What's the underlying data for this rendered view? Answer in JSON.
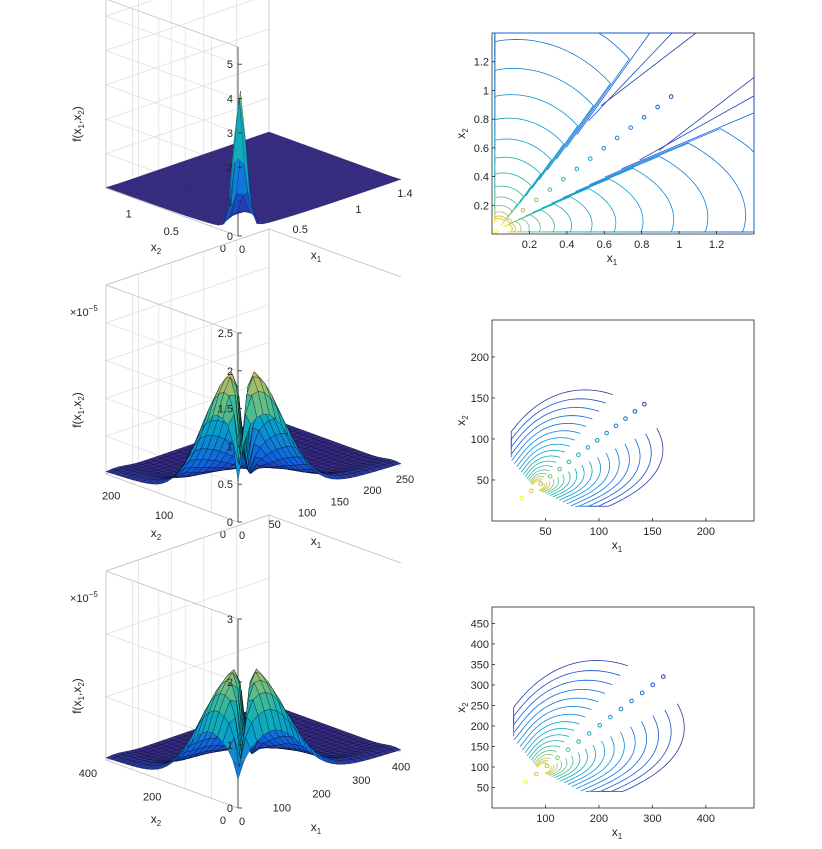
{
  "figure": {
    "panels_3d": [
      {
        "zlabel": "f(x",
        "zticks": [
          "0",
          "1",
          "2",
          "3",
          "4",
          "5"
        ],
        "exponent": "",
        "x1ticks": [
          "0",
          "0.5",
          "1",
          "1.4"
        ],
        "x2ticks": [
          "0",
          "0.5",
          "1"
        ],
        "x1label": "x",
        "x2label": "x"
      },
      {
        "zlabel": "f(x",
        "zticks": [
          "0",
          "0.5",
          "1",
          "1.5",
          "2",
          "2.5"
        ],
        "exponent": "×10",
        "exponent_power": "−5",
        "x1ticks": [
          "0",
          "50",
          "100",
          "150",
          "200",
          "250"
        ],
        "x2ticks": [
          "0",
          "100",
          "200"
        ],
        "x1label": "x",
        "x2label": "x"
      },
      {
        "zlabel": "f(x",
        "zticks": [
          "0",
          "1",
          "2",
          "3"
        ],
        "exponent": "×10",
        "exponent_power": "−5",
        "x1ticks": [
          "0",
          "100",
          "200",
          "300",
          "400"
        ],
        "x2ticks": [
          "0",
          "200",
          "400"
        ],
        "x1label": "x",
        "x2label": "x"
      }
    ],
    "panels_contour": [
      {
        "xticks": [
          "0.2",
          "0.4",
          "0.6",
          "0.8",
          "1",
          "1.2"
        ],
        "yticks": [
          "0.2",
          "0.4",
          "0.6",
          "0.8",
          "1",
          "1.2"
        ],
        "xlabel": "x",
        "ylabel": "x"
      },
      {
        "xticks": [
          "50",
          "100",
          "150",
          "200"
        ],
        "yticks": [
          "50",
          "100",
          "150",
          "200"
        ],
        "xlabel": "x",
        "ylabel": "x"
      },
      {
        "xticks": [
          "100",
          "200",
          "300",
          "400"
        ],
        "yticks": [
          "50",
          "100",
          "150",
          "200",
          "250",
          "300",
          "350",
          "400",
          "450"
        ],
        "xlabel": "x",
        "ylabel": "x"
      }
    ]
  },
  "chart_data": [
    {
      "type": "surface",
      "title": "",
      "zlabel": "f(x1,x2)",
      "xlabel": "x1",
      "ylabel": "x2",
      "xlim": [
        0,
        1.4
      ],
      "ylim": [
        0,
        1.4
      ],
      "zlim": [
        0,
        5.5
      ],
      "peak_value": 4.8,
      "peak_note": "two ridges meeting at a sharp peak near the origin along the diagonal x1 = x2"
    },
    {
      "type": "contour",
      "title": "",
      "xlabel": "x1",
      "ylabel": "x2",
      "xlim": [
        0,
        1.4
      ],
      "ylim": [
        0,
        1.4
      ],
      "levels": 18,
      "mode_x": [
        0.03,
        0.03
      ],
      "mode_y": [
        0.03,
        0.03
      ]
    },
    {
      "type": "surface",
      "title": "",
      "zlabel": "f(x1,x2)",
      "xlabel": "x1",
      "ylabel": "x2",
      "xlim": [
        0,
        250
      ],
      "ylim": [
        0,
        250
      ],
      "zlim": [
        0,
        2.5e-05
      ],
      "zscale": 1e-05,
      "peak_value": 2.05e-05,
      "mode": [
        40,
        40
      ]
    },
    {
      "type": "contour",
      "title": "",
      "xlabel": "x1",
      "ylabel": "x2",
      "xlim": [
        0,
        245
      ],
      "ylim": [
        0,
        245
      ],
      "levels": 18,
      "mode": [
        40,
        40
      ]
    },
    {
      "type": "surface",
      "title": "",
      "zlabel": "f(x1,x2)",
      "xlabel": "x1",
      "ylabel": "x2",
      "xlim": [
        0,
        410
      ],
      "ylim": [
        0,
        410
      ],
      "zlim": [
        0,
        3e-05
      ],
      "zscale": 1e-05,
      "peak_value": 2.3e-05,
      "mode": [
        90,
        90
      ]
    },
    {
      "type": "contour",
      "title": "",
      "xlabel": "x1",
      "ylabel": "x2",
      "xlim": [
        0,
        490
      ],
      "ylim": [
        0,
        490
      ],
      "levels": 18,
      "mode": [
        90,
        90
      ]
    }
  ],
  "colors": {
    "axis": "#262626",
    "grid": "#dcdcdc",
    "box": "#bfbfbf",
    "low": "#352a87",
    "mid": "#21b1c7",
    "high": "#f9fb0e",
    "edge": "#000000"
  }
}
